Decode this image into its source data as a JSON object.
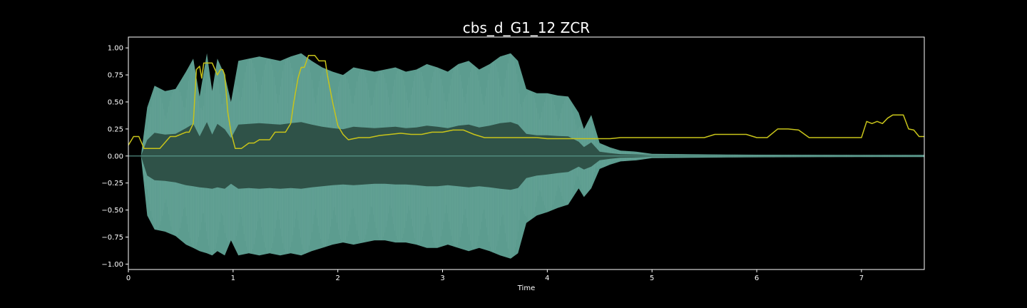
{
  "chart_data": {
    "type": "line",
    "title": "cbs_d_G1_12 ZCR",
    "xlabel": "Time",
    "ylabel": "",
    "xlim": [
      0,
      7.6
    ],
    "ylim": [
      -1.05,
      1.1
    ],
    "x_ticks": [
      0,
      1,
      2,
      3,
      4,
      5,
      6,
      7
    ],
    "y_ticks": [
      -1.0,
      -0.75,
      -0.5,
      -0.25,
      0.0,
      0.25,
      0.5,
      0.75,
      1.0
    ],
    "y_tick_labels": [
      "−1.00",
      "−0.75",
      "−0.50",
      "−0.25",
      "0.00",
      "0.25",
      "0.50",
      "0.75",
      "1.00"
    ],
    "grid": false,
    "colors": {
      "background": "#000000",
      "waveform_outer": "#5c9c8f",
      "waveform_inner": "#2f5248",
      "zcr_line": "#c8c41a",
      "axes": "#ffffff"
    },
    "series": [
      {
        "kind": "waveform-envelope",
        "x": [
          0.0,
          0.12,
          0.18,
          0.25,
          0.35,
          0.45,
          0.55,
          0.62,
          0.68,
          0.75,
          0.8,
          0.85,
          0.92,
          0.98,
          1.05,
          1.15,
          1.25,
          1.35,
          1.45,
          1.55,
          1.65,
          1.75,
          1.85,
          1.95,
          2.05,
          2.15,
          2.25,
          2.35,
          2.45,
          2.55,
          2.65,
          2.75,
          2.85,
          2.95,
          3.05,
          3.15,
          3.25,
          3.35,
          3.45,
          3.55,
          3.65,
          3.72,
          3.8,
          3.9,
          4.0,
          4.1,
          4.2,
          4.3,
          4.35,
          4.42,
          4.5,
          4.6,
          4.7,
          4.85,
          5.0,
          5.5,
          6.0,
          7.0,
          7.6
        ],
        "upper": [
          0.0,
          0.0,
          0.45,
          0.65,
          0.6,
          0.62,
          0.78,
          0.9,
          0.55,
          0.95,
          0.6,
          0.9,
          0.75,
          0.5,
          0.88,
          0.9,
          0.92,
          0.9,
          0.88,
          0.92,
          0.95,
          0.88,
          0.82,
          0.78,
          0.75,
          0.82,
          0.8,
          0.78,
          0.8,
          0.82,
          0.78,
          0.8,
          0.85,
          0.82,
          0.78,
          0.85,
          0.88,
          0.8,
          0.85,
          0.92,
          0.95,
          0.88,
          0.62,
          0.58,
          0.58,
          0.56,
          0.55,
          0.4,
          0.25,
          0.38,
          0.12,
          0.08,
          0.05,
          0.04,
          0.02,
          0.015,
          0.012,
          0.01,
          0.01
        ],
        "lower": [
          0.0,
          0.0,
          -0.55,
          -0.68,
          -0.7,
          -0.74,
          -0.82,
          -0.85,
          -0.88,
          -0.9,
          -0.92,
          -0.88,
          -0.92,
          -0.78,
          -0.92,
          -0.9,
          -0.92,
          -0.9,
          -0.92,
          -0.9,
          -0.92,
          -0.88,
          -0.85,
          -0.82,
          -0.8,
          -0.82,
          -0.8,
          -0.78,
          -0.78,
          -0.8,
          -0.8,
          -0.82,
          -0.85,
          -0.85,
          -0.82,
          -0.85,
          -0.88,
          -0.85,
          -0.88,
          -0.92,
          -0.95,
          -0.9,
          -0.62,
          -0.55,
          -0.52,
          -0.48,
          -0.45,
          -0.3,
          -0.38,
          -0.3,
          -0.12,
          -0.08,
          -0.05,
          -0.04,
          -0.02,
          -0.015,
          -0.012,
          -0.01,
          -0.01
        ]
      },
      {
        "kind": "zcr",
        "x": [
          0.0,
          0.05,
          0.1,
          0.15,
          0.2,
          0.3,
          0.4,
          0.45,
          0.55,
          0.58,
          0.62,
          0.65,
          0.68,
          0.7,
          0.72,
          0.8,
          0.85,
          0.88,
          0.9,
          0.92,
          0.95,
          0.98,
          1.02,
          1.08,
          1.15,
          1.2,
          1.25,
          1.35,
          1.4,
          1.45,
          1.5,
          1.55,
          1.58,
          1.62,
          1.65,
          1.68,
          1.72,
          1.78,
          1.82,
          1.85,
          1.88,
          1.9,
          1.95,
          2.0,
          2.05,
          2.1,
          2.2,
          2.3,
          2.4,
          2.5,
          2.6,
          2.7,
          2.8,
          2.9,
          3.0,
          3.1,
          3.2,
          3.3,
          3.4,
          3.5,
          3.6,
          3.7,
          3.8,
          3.9,
          4.0,
          4.1,
          4.2,
          4.3,
          4.4,
          4.5,
          4.6,
          4.7,
          4.8,
          4.9,
          5.0,
          5.1,
          5.2,
          5.3,
          5.4,
          5.5,
          5.6,
          5.7,
          5.8,
          5.9,
          6.0,
          6.1,
          6.2,
          6.3,
          6.4,
          6.5,
          6.6,
          6.7,
          6.8,
          6.9,
          7.0,
          7.05,
          7.1,
          7.15,
          7.2,
          7.25,
          7.3,
          7.35,
          7.4,
          7.45,
          7.5,
          7.55,
          7.6
        ],
        "y": [
          0.1,
          0.18,
          0.18,
          0.07,
          0.07,
          0.07,
          0.18,
          0.18,
          0.22,
          0.22,
          0.3,
          0.8,
          0.83,
          0.72,
          0.86,
          0.86,
          0.75,
          0.8,
          0.8,
          0.75,
          0.4,
          0.22,
          0.07,
          0.07,
          0.12,
          0.12,
          0.15,
          0.15,
          0.22,
          0.22,
          0.22,
          0.3,
          0.5,
          0.72,
          0.82,
          0.82,
          0.93,
          0.93,
          0.88,
          0.88,
          0.88,
          0.75,
          0.5,
          0.28,
          0.2,
          0.15,
          0.17,
          0.17,
          0.19,
          0.2,
          0.21,
          0.2,
          0.2,
          0.22,
          0.22,
          0.24,
          0.24,
          0.2,
          0.17,
          0.17,
          0.17,
          0.17,
          0.17,
          0.17,
          0.16,
          0.16,
          0.16,
          0.16,
          0.16,
          0.16,
          0.16,
          0.17,
          0.17,
          0.17,
          0.17,
          0.17,
          0.17,
          0.17,
          0.17,
          0.17,
          0.2,
          0.2,
          0.2,
          0.2,
          0.17,
          0.17,
          0.25,
          0.25,
          0.24,
          0.17,
          0.17,
          0.17,
          0.17,
          0.17,
          0.17,
          0.32,
          0.3,
          0.32,
          0.3,
          0.35,
          0.38,
          0.38,
          0.38,
          0.25,
          0.24,
          0.18,
          0.18
        ]
      }
    ]
  }
}
